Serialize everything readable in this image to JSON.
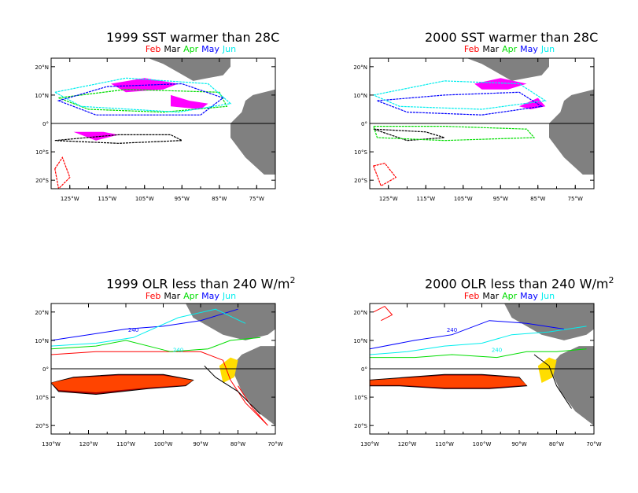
{
  "colors": {
    "Feb": "#ff0000",
    "Mar": "#000000",
    "Apr": "#00dd00",
    "May": "#0000ff",
    "Jun": "#00eeee",
    "land": "#808080",
    "sst_fill": "#ff00ff",
    "olr_low": "#aa0000",
    "olr_mid": "#ff4400",
    "olr_high": "#ffdd00"
  },
  "legend_months": [
    "Feb",
    "Mar",
    "Apr",
    "May",
    "Jun"
  ],
  "chart_data": [
    {
      "type": "heatmap",
      "id": "sst1999",
      "title": "1999 SST warmer than 28C",
      "variable": "SST > 28C",
      "x_ticks": [
        "125°W",
        "115°W",
        "105°W",
        "95°W",
        "85°W",
        "75°W"
      ],
      "y_ticks": [
        "20°N",
        "10°N",
        "0°",
        "10°S",
        "20°S"
      ],
      "xlim": [
        -130,
        -70
      ],
      "ylim": [
        -23,
        23
      ],
      "grid": false,
      "legend": "top-center",
      "series": [
        {
          "name": "Feb",
          "regions": [
            [
              [
                -129,
                -16
              ],
              [
                -127,
                -12
              ],
              [
                -125,
                -19
              ],
              [
                -128,
                -23
              ]
            ]
          ]
        },
        {
          "name": "Mar",
          "regions": [
            [
              [
                -129,
                -6
              ],
              [
                -112,
                -4
              ],
              [
                -98,
                -4
              ],
              [
                -95,
                -6
              ],
              [
                -112,
                -7
              ]
            ]
          ]
        },
        {
          "name": "Apr",
          "regions": [
            [
              [
                -128,
                9
              ],
              [
                -110,
                12
              ],
              [
                -85,
                11
              ],
              [
                -83,
                6
              ],
              [
                -100,
                4
              ],
              [
                -120,
                5
              ]
            ]
          ]
        },
        {
          "name": "May",
          "regions": [
            [
              [
                -128,
                8
              ],
              [
                -115,
                13
              ],
              [
                -95,
                14
              ],
              [
                -84,
                9
              ],
              [
                -90,
                3
              ],
              [
                -118,
                3
              ]
            ]
          ]
        },
        {
          "name": "Jun",
          "regions": [
            [
              [
                -129,
                11
              ],
              [
                -110,
                16
              ],
              [
                -88,
                14
              ],
              [
                -82,
                7
              ],
              [
                -96,
                4
              ],
              [
                -122,
                6
              ]
            ]
          ]
        }
      ],
      "filled": [
        [
          [
            -114,
            14
          ],
          [
            -105,
            16
          ],
          [
            -96,
            14
          ],
          [
            -100,
            12
          ],
          [
            -110,
            11
          ]
        ],
        [
          [
            -98,
            10
          ],
          [
            -93,
            8
          ],
          [
            -88,
            7
          ],
          [
            -90,
            5
          ],
          [
            -98,
            6
          ]
        ],
        [
          [
            -124,
            -3
          ],
          [
            -116,
            -3
          ],
          [
            -112,
            -4
          ],
          [
            -118,
            -6
          ]
        ]
      ]
    },
    {
      "type": "heatmap",
      "id": "sst2000",
      "title": "2000 SST warmer than 28C",
      "variable": "SST > 28C",
      "x_ticks": [
        "125°W",
        "115°W",
        "105°W",
        "95°W",
        "85°W",
        "75°W"
      ],
      "y_ticks": [
        "20°N",
        "10°N",
        "0°",
        "10°S",
        "20°S"
      ],
      "xlim": [
        -130,
        -70
      ],
      "ylim": [
        -23,
        23
      ],
      "grid": false,
      "legend": "top-center",
      "series": [
        {
          "name": "Feb",
          "regions": [
            [
              [
                -129,
                -15
              ],
              [
                -126,
                -14
              ],
              [
                -123,
                -19
              ],
              [
                -127,
                -22
              ]
            ]
          ]
        },
        {
          "name": "Mar",
          "regions": [
            [
              [
                -129,
                -2
              ],
              [
                -115,
                -3
              ],
              [
                -110,
                -5
              ],
              [
                -120,
                -6
              ]
            ]
          ]
        },
        {
          "name": "Apr",
          "regions": [
            [
              [
                -129,
                -1
              ],
              [
                -110,
                -1
              ],
              [
                -88,
                -2
              ],
              [
                -86,
                -5
              ],
              [
                -110,
                -6
              ],
              [
                -128,
                -5
              ]
            ]
          ]
        },
        {
          "name": "May",
          "regions": [
            [
              [
                -128,
                8
              ],
              [
                -110,
                10
              ],
              [
                -90,
                11
              ],
              [
                -84,
                6
              ],
              [
                -100,
                3
              ],
              [
                -120,
                4
              ]
            ]
          ]
        },
        {
          "name": "Jun",
          "regions": [
            [
              [
                -129,
                10
              ],
              [
                -110,
                15
              ],
              [
                -90,
                14
              ],
              [
                -83,
                8
              ],
              [
                -100,
                5
              ],
              [
                -122,
                6
              ]
            ]
          ]
        }
      ],
      "filled": [
        [
          [
            -102,
            14
          ],
          [
            -95,
            16
          ],
          [
            -88,
            14
          ],
          [
            -93,
            12
          ],
          [
            -100,
            12
          ]
        ],
        [
          [
            -90,
            6
          ],
          [
            -85,
            9
          ],
          [
            -83,
            6
          ],
          [
            -87,
            5
          ]
        ]
      ]
    },
    {
      "type": "heatmap",
      "id": "olr1999",
      "title_main": "1999 OLR less than 240 W/m",
      "title_sup": "2",
      "variable": "OLR < 240 W/m2",
      "x_ticks": [
        "130°W",
        "120°W",
        "110°W",
        "100°W",
        "90°W",
        "80°W",
        "70°W"
      ],
      "y_ticks": [
        "20°N",
        "10°N",
        "0°",
        "10°S",
        "20°S"
      ],
      "xlim": [
        -130,
        -70
      ],
      "ylim": [
        -23,
        23
      ],
      "contour_label": "240",
      "grid": false,
      "legend": "top-center",
      "series": [
        {
          "name": "Feb",
          "regions": [
            [
              [
                -130,
                5
              ],
              [
                -118,
                6
              ],
              [
                -100,
                6
              ],
              [
                -90,
                6
              ],
              [
                -84,
                3
              ],
              [
                -82,
                -4
              ],
              [
                -78,
                -12
              ],
              [
                -72,
                -20
              ],
              [
                -76,
                -14
              ],
              [
                -80,
                -6
              ]
            ]
          ]
        },
        {
          "name": "Mar",
          "regions": [
            [
              [
                -89,
                1
              ],
              [
                -86,
                -3
              ],
              [
                -80,
                -8
              ],
              [
                -74,
                -16
              ]
            ]
          ]
        },
        {
          "name": "Apr",
          "regions": [
            [
              [
                -130,
                7
              ],
              [
                -118,
                8
              ],
              [
                -110,
                10
              ],
              [
                -98,
                6
              ],
              [
                -88,
                7
              ],
              [
                -82,
                10
              ],
              [
                -74,
                11
              ]
            ]
          ]
        },
        {
          "name": "May",
          "regions": [
            [
              [
                -130,
                10
              ],
              [
                -120,
                12
              ],
              [
                -110,
                14
              ],
              [
                -100,
                15
              ],
              [
                -90,
                17
              ],
              [
                -80,
                21
              ]
            ]
          ]
        },
        {
          "name": "Jun",
          "regions": [
            [
              [
                -130,
                8
              ],
              [
                -118,
                9
              ],
              [
                -108,
                11
              ],
              [
                -96,
                18
              ],
              [
                -86,
                21
              ],
              [
                -78,
                16
              ]
            ]
          ]
        }
      ],
      "olr_region": [
        [
          -130,
          -5
        ],
        [
          -124,
          -3
        ],
        [
          -112,
          -2
        ],
        [
          -100,
          -2
        ],
        [
          -92,
          -4
        ],
        [
          -94,
          -6
        ],
        [
          -104,
          -7
        ],
        [
          -118,
          -9
        ],
        [
          -128,
          -8
        ]
      ]
    },
    {
      "type": "heatmap",
      "id": "olr2000",
      "title_main": "2000 OLR less than 240 W/m",
      "title_sup": "2",
      "variable": "OLR < 240 W/m2",
      "x_ticks": [
        "130°W",
        "120°W",
        "110°W",
        "100°W",
        "90°W",
        "80°W",
        "70°W"
      ],
      "y_ticks": [
        "20°N",
        "10°N",
        "0°",
        "10°S",
        "20°S"
      ],
      "xlim": [
        -130,
        -70
      ],
      "ylim": [
        -23,
        23
      ],
      "contour_label": "240",
      "grid": false,
      "legend": "top-center",
      "series": [
        {
          "name": "Feb",
          "regions": [
            [
              [
                -129,
                20
              ],
              [
                -126,
                22
              ],
              [
                -124,
                19
              ],
              [
                -127,
                17
              ]
            ]
          ]
        },
        {
          "name": "Mar",
          "regions": [
            [
              [
                -86,
                5
              ],
              [
                -82,
                1
              ],
              [
                -80,
                -6
              ],
              [
                -76,
                -14
              ]
            ]
          ]
        },
        {
          "name": "Apr",
          "regions": [
            [
              [
                -130,
                4
              ],
              [
                -118,
                4
              ],
              [
                -108,
                5
              ],
              [
                -96,
                4
              ],
              [
                -88,
                6
              ],
              [
                -80,
                6
              ],
              [
                -72,
                7
              ]
            ]
          ]
        },
        {
          "name": "May",
          "regions": [
            [
              [
                -130,
                7
              ],
              [
                -118,
                10
              ],
              [
                -108,
                12
              ],
              [
                -98,
                17
              ],
              [
                -88,
                16
              ],
              [
                -78,
                14
              ]
            ]
          ]
        },
        {
          "name": "Jun",
          "regions": [
            [
              [
                -130,
                5
              ],
              [
                -120,
                6
              ],
              [
                -110,
                8
              ],
              [
                -100,
                9
              ],
              [
                -92,
                12
              ],
              [
                -82,
                13
              ],
              [
                -72,
                15
              ]
            ]
          ]
        }
      ],
      "olr_region": [
        [
          -130,
          -4
        ],
        [
          -120,
          -3
        ],
        [
          -110,
          -2
        ],
        [
          -100,
          -2
        ],
        [
          -90,
          -3
        ],
        [
          -88,
          -6
        ],
        [
          -98,
          -7
        ],
        [
          -110,
          -7
        ],
        [
          -122,
          -6
        ],
        [
          -130,
          -6
        ]
      ]
    }
  ]
}
